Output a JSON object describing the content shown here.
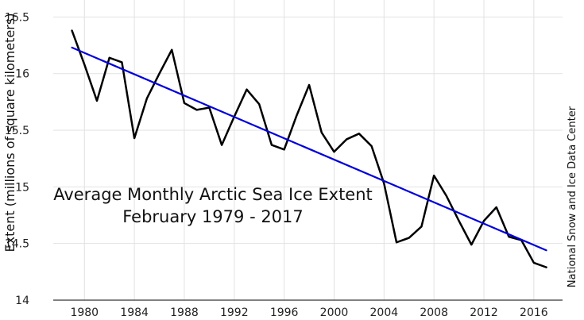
{
  "chart_data": {
    "type": "line",
    "title": "Average Monthly Arctic Sea Ice Extent",
    "subtitle": "February 1979 - 2017",
    "xlabel": "",
    "ylabel": "Extent (millions of square kilometers)",
    "source": "National Snow and Ice Data Center",
    "xlim": [
      1977.5,
      2018.3
    ],
    "ylim": [
      14,
      16.65
    ],
    "x_ticks": [
      1980,
      1984,
      1988,
      1992,
      1996,
      2000,
      2004,
      2008,
      2012,
      2016
    ],
    "y_ticks": [
      14,
      14.5,
      15,
      15.5,
      16,
      16.5
    ],
    "y_tick_labels": [
      "14",
      "14.5",
      "15",
      "15.5",
      "16",
      "16.5"
    ],
    "grid": true,
    "legend": "none",
    "series": [
      {
        "color": "#000000",
        "points": [
          [
            1979,
            16.38
          ],
          [
            1980,
            16.08
          ],
          [
            1981,
            15.76
          ],
          [
            1982,
            16.14
          ],
          [
            1983,
            16.1
          ],
          [
            1984,
            15.43
          ],
          [
            1985,
            15.78
          ],
          [
            1986,
            16.0
          ],
          [
            1987,
            16.21
          ],
          [
            1988,
            15.74
          ],
          [
            1989,
            15.68
          ],
          [
            1990,
            15.7
          ],
          [
            1991,
            15.37
          ],
          [
            1992,
            15.62
          ],
          [
            1993,
            15.86
          ],
          [
            1994,
            15.73
          ],
          [
            1995,
            15.37
          ],
          [
            1996,
            15.33
          ],
          [
            1997,
            15.63
          ],
          [
            1998,
            15.9
          ],
          [
            1999,
            15.48
          ],
          [
            2000,
            15.31
          ],
          [
            2001,
            15.42
          ],
          [
            2002,
            15.47
          ],
          [
            2003,
            15.36
          ],
          [
            2004,
            15.03
          ],
          [
            2005,
            14.51
          ],
          [
            2006,
            14.55
          ],
          [
            2007,
            14.65
          ],
          [
            2008,
            15.1
          ],
          [
            2009,
            14.92
          ],
          [
            2010,
            14.7
          ],
          [
            2011,
            14.49
          ],
          [
            2012,
            14.7
          ],
          [
            2013,
            14.82
          ],
          [
            2014,
            14.56
          ],
          [
            2015,
            14.53
          ],
          [
            2016,
            14.33
          ],
          [
            2017,
            14.29
          ]
        ]
      },
      {
        "color": "#0000dd",
        "points": [
          [
            1979,
            16.23
          ],
          [
            2017,
            14.44
          ]
        ]
      }
    ]
  },
  "colors": {
    "grid": "#e2e2e2",
    "axis": "#000000",
    "observed": "#000000",
    "trend": "#0000dd"
  }
}
